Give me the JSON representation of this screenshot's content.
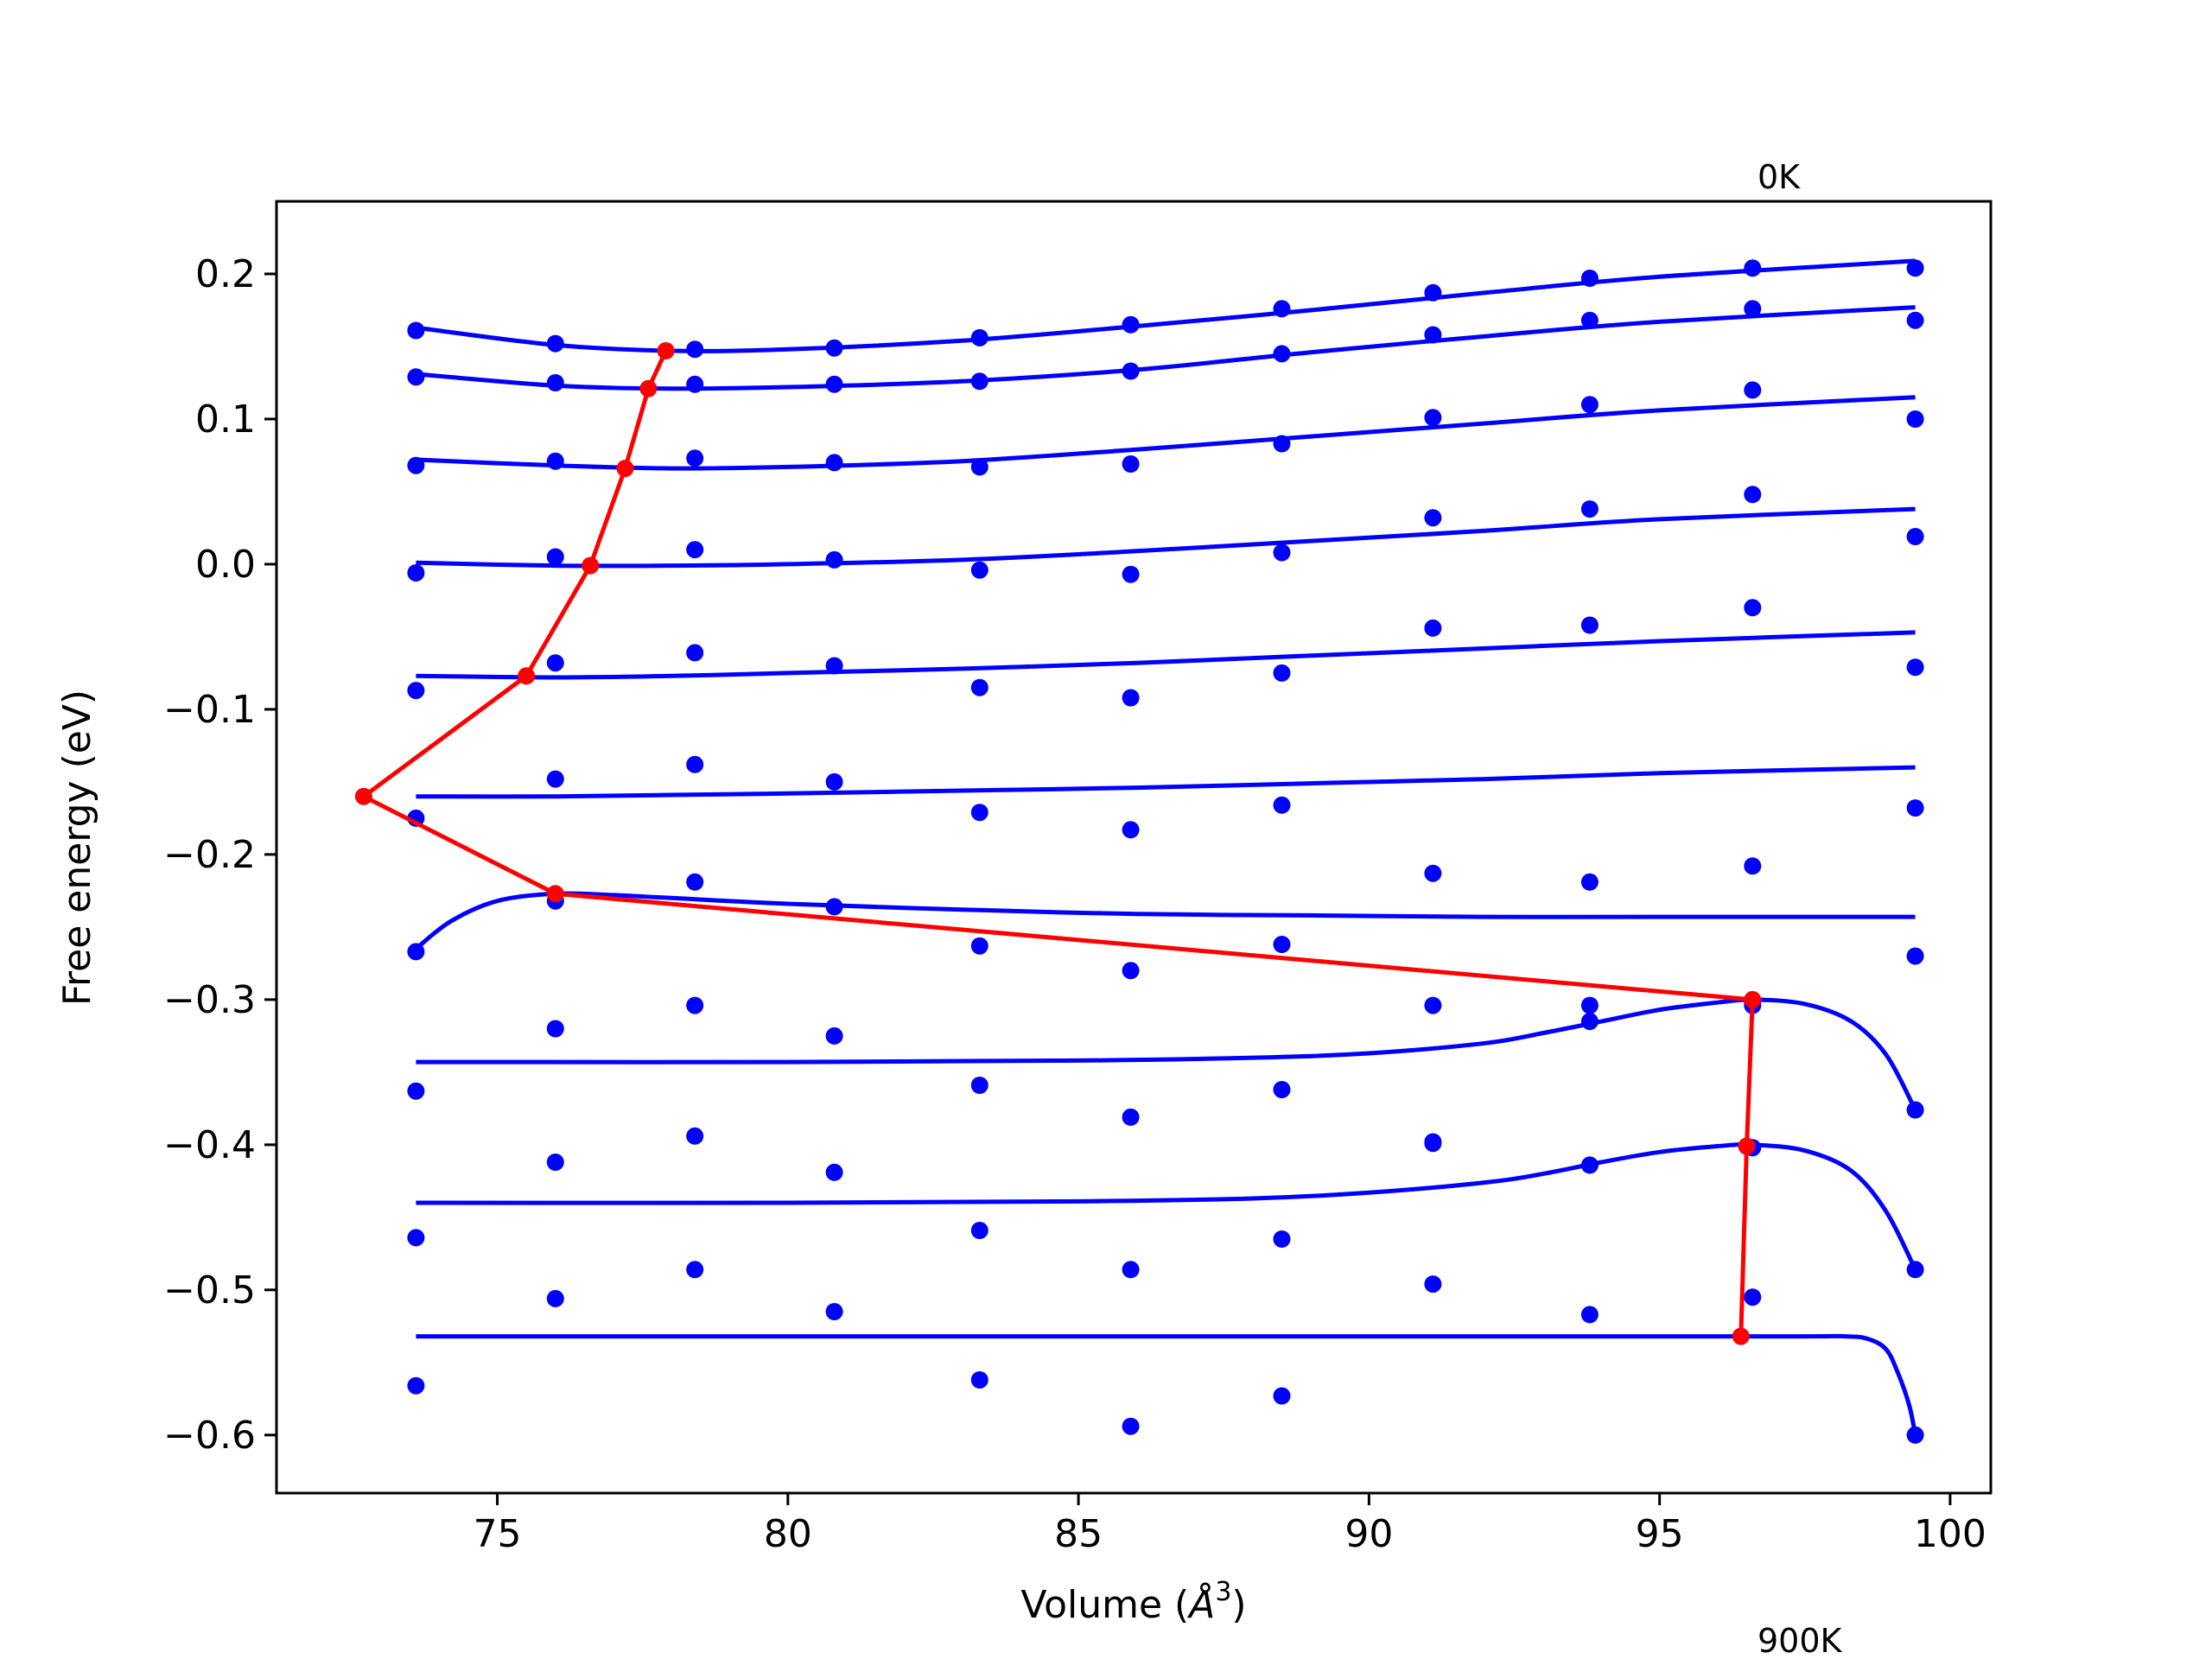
{
  "chart_data": {
    "type": "scatter",
    "xlabel": "Volume ($\\AA^3$)",
    "xlabel_main": "Volume (",
    "xlabel_unit": "Å",
    "xlabel_sup": "3",
    "xlabel_close": ")",
    "ylabel": "Free energy (eV)",
    "xlim": [
      71.2,
      100.7
    ],
    "ylim": [
      -0.64,
      0.25
    ],
    "xticks": [
      75,
      80,
      85,
      90,
      95,
      100
    ],
    "xtick_labels": [
      "75",
      "80",
      "85",
      "90",
      "95",
      "100"
    ],
    "yticks": [
      0.2,
      0.1,
      0.0,
      -0.1,
      -0.2,
      -0.3,
      -0.4,
      -0.5,
      -0.6
    ],
    "ytick_labels": [
      "0.2",
      "0.1",
      "0.0",
      "−0.1",
      "−0.2",
      "−0.3",
      "−0.4",
      "−0.5",
      "−0.6"
    ],
    "annotations": {
      "top": "0K",
      "bottom": "900K"
    },
    "grid": false,
    "colors": {
      "points": "#0000ff",
      "fits": "#0000ff",
      "equilibrium": "#ff0000"
    },
    "volumes": [
      73.6,
      76.0,
      78.4,
      80.8,
      83.3,
      85.9,
      88.5,
      91.1,
      93.8,
      96.6,
      99.4
    ],
    "series": [
      {
        "energies": [
          0.161,
          0.152,
          0.148,
          0.149,
          0.156,
          0.165,
          0.176,
          0.187,
          0.197,
          0.204,
          0.204
        ],
        "fit": [
          [
            73.6,
            0.163
          ],
          [
            76,
            0.151
          ],
          [
            78,
            0.147
          ],
          [
            80,
            0.148
          ],
          [
            83,
            0.154
          ],
          [
            86,
            0.164
          ],
          [
            89,
            0.175
          ],
          [
            92,
            0.187
          ],
          [
            95,
            0.198
          ],
          [
            99.4,
            0.209
          ]
        ]
      },
      {
        "energies": [
          0.129,
          0.125,
          0.124,
          0.124,
          0.126,
          0.133,
          0.145,
          0.158,
          0.168,
          0.176,
          0.168
        ],
        "fit": [
          [
            73.6,
            0.131
          ],
          [
            76,
            0.123
          ],
          [
            78,
            0.121
          ],
          [
            80,
            0.122
          ],
          [
            83,
            0.126
          ],
          [
            86,
            0.134
          ],
          [
            89,
            0.146
          ],
          [
            92,
            0.157
          ],
          [
            95,
            0.167
          ],
          [
            99.4,
            0.177
          ]
        ]
      },
      {
        "energies": [
          0.068,
          0.071,
          0.073,
          0.07,
          0.067,
          0.069,
          0.083,
          0.101,
          0.11,
          0.12,
          0.1
        ],
        "fit": [
          [
            73.6,
            0.072
          ],
          [
            76,
            0.068
          ],
          [
            78,
            0.066
          ],
          [
            80,
            0.067
          ],
          [
            83,
            0.071
          ],
          [
            86,
            0.079
          ],
          [
            89,
            0.088
          ],
          [
            92,
            0.097
          ],
          [
            95,
            0.106
          ],
          [
            99.4,
            0.115
          ]
        ]
      },
      {
        "energies": [
          -0.006,
          0.005,
          0.01,
          0.003,
          -0.004,
          -0.007,
          0.008,
          0.032,
          0.038,
          0.048,
          0.019
        ],
        "fit": [
          [
            73.6,
            0.001
          ],
          [
            76,
            -0.001
          ],
          [
            78,
            -0.001
          ],
          [
            80,
            0.0
          ],
          [
            83,
            0.003
          ],
          [
            86,
            0.009
          ],
          [
            89,
            0.016
          ],
          [
            92,
            0.023
          ],
          [
            95,
            0.031
          ],
          [
            99.4,
            0.038
          ]
        ]
      },
      {
        "energies": [
          -0.087,
          -0.068,
          -0.061,
          -0.07,
          -0.085,
          -0.092,
          -0.075,
          -0.044,
          -0.042,
          -0.03,
          -0.071
        ],
        "fit": [
          [
            73.6,
            -0.077
          ],
          [
            76,
            -0.078
          ],
          [
            78,
            -0.077
          ],
          [
            80,
            -0.075
          ],
          [
            83,
            -0.072
          ],
          [
            86,
            -0.068
          ],
          [
            89,
            -0.063
          ],
          [
            92,
            -0.058
          ],
          [
            95,
            -0.053
          ],
          [
            99.4,
            -0.047
          ]
        ]
      },
      {
        "energies": [
          -0.175,
          -0.148,
          -0.138,
          -0.15,
          -0.171,
          -0.183,
          -0.166,
          -0.213,
          -0.219,
          -0.208,
          -0.168
        ],
        "fit": [
          [
            73.6,
            -0.16
          ],
          [
            76,
            -0.16
          ],
          [
            78,
            -0.159
          ],
          [
            80,
            -0.158
          ],
          [
            83,
            -0.156
          ],
          [
            86,
            -0.154
          ],
          [
            89,
            -0.151
          ],
          [
            92,
            -0.148
          ],
          [
            95,
            -0.144
          ],
          [
            99.4,
            -0.14
          ]
        ]
      },
      {
        "energies": [
          -0.267,
          -0.232,
          -0.219,
          -0.236,
          -0.263,
          -0.28,
          -0.262,
          -0.304,
          -0.304,
          -0.302,
          -0.27
        ],
        "fit": [
          [
            73.6,
            -0.265
          ],
          [
            74.2,
            -0.246
          ],
          [
            75,
            -0.232
          ],
          [
            76,
            -0.227
          ],
          [
            77,
            -0.228
          ],
          [
            78,
            -0.23
          ],
          [
            80,
            -0.234
          ],
          [
            83,
            -0.238
          ],
          [
            86,
            -0.241
          ],
          [
            89,
            -0.242
          ],
          [
            92,
            -0.243
          ],
          [
            95,
            -0.243
          ],
          [
            99.4,
            -0.243
          ]
        ]
      },
      {
        "energies": [
          -0.363,
          -0.32,
          -0.304,
          -0.325,
          -0.359,
          -0.381,
          -0.362,
          -0.399,
          -0.315,
          -0.304,
          -0.376
        ],
        "fit": [
          [
            73.6,
            -0.343
          ],
          [
            80,
            -0.343
          ],
          [
            85,
            -0.342
          ],
          [
            88,
            -0.34
          ],
          [
            90,
            -0.337
          ],
          [
            92,
            -0.33
          ],
          [
            93,
            -0.323
          ],
          [
            94,
            -0.315
          ],
          [
            95,
            -0.307
          ],
          [
            96,
            -0.302
          ],
          [
            96.6,
            -0.3
          ],
          [
            97.5,
            -0.303
          ],
          [
            98.3,
            -0.315
          ],
          [
            98.9,
            -0.338
          ],
          [
            99.4,
            -0.376
          ]
        ]
      },
      {
        "energies": [
          -0.464,
          -0.412,
          -0.394,
          -0.419,
          -0.459,
          -0.486,
          -0.465,
          -0.398,
          -0.414,
          -0.402,
          -0.486
        ],
        "fit": [
          [
            73.6,
            -0.44
          ],
          [
            80,
            -0.44
          ],
          [
            85,
            -0.439
          ],
          [
            88,
            -0.437
          ],
          [
            90,
            -0.433
          ],
          [
            92,
            -0.426
          ],
          [
            93,
            -0.42
          ],
          [
            94,
            -0.412
          ],
          [
            95,
            -0.405
          ],
          [
            96,
            -0.401
          ],
          [
            96.6,
            -0.4
          ],
          [
            97.5,
            -0.404
          ],
          [
            98.3,
            -0.418
          ],
          [
            98.9,
            -0.446
          ],
          [
            99.4,
            -0.486
          ]
        ]
      },
      {
        "energies": [
          -0.566,
          -0.506,
          -0.486,
          -0.515,
          -0.562,
          -0.594,
          -0.573,
          -0.496,
          -0.517,
          -0.505,
          -0.6
        ],
        "fit": [
          [
            73.6,
            -0.532
          ],
          [
            90,
            -0.532
          ],
          [
            97,
            -0.532
          ],
          [
            98.2,
            -0.532
          ],
          [
            98.6,
            -0.534
          ],
          [
            98.9,
            -0.541
          ],
          [
            99.1,
            -0.557
          ],
          [
            99.3,
            -0.58
          ],
          [
            99.4,
            -0.6
          ]
        ]
      }
    ],
    "equilibrium": {
      "x": [
        77.9,
        77.6,
        77.2,
        76.6,
        75.5,
        72.7,
        76.0,
        96.6,
        96.5,
        96.4
      ],
      "y": [
        0.147,
        0.121,
        0.066,
        -0.001,
        -0.077,
        -0.16,
        -0.227,
        -0.3,
        -0.401,
        -0.532
      ]
    }
  }
}
